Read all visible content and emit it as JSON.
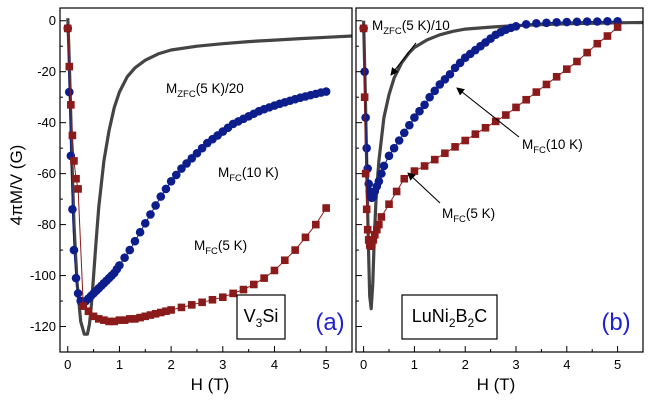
{
  "chart_data": [
    {
      "type": "line",
      "panel_label": "(a)",
      "material_label": {
        "base": "V",
        "sub": "3",
        "rest": "Si"
      },
      "xlabel": "H (T)",
      "ylabel": "4πM/V (G)",
      "xlim": [
        -0.15,
        5.5
      ],
      "ylim": [
        -130,
        5
      ],
      "xticks": [
        0,
        1,
        2,
        3,
        4,
        5
      ],
      "yticks": [
        0,
        -20,
        -40,
        -60,
        -80,
        -100,
        -120
      ],
      "colors": {
        "zfc": "#444444",
        "fc10": "#0d1e8c",
        "fc5": "#8b1a1a",
        "label_blue": "#2222cc"
      },
      "series": [
        {
          "key": "zfc",
          "marker": "none",
          "label": {
            "main": "M",
            "sub": "ZFC",
            "rest": "(5 K)/20"
          },
          "x": [
            0.0,
            0.02,
            0.05,
            0.08,
            0.12,
            0.18,
            0.25,
            0.32,
            0.38,
            0.42,
            0.46,
            0.5,
            0.55,
            0.6,
            0.7,
            0.8,
            0.9,
            1.0,
            1.15,
            1.3,
            1.5,
            1.75,
            2.0,
            2.5,
            3.0,
            3.5,
            4.0,
            4.5,
            5.0,
            5.5
          ],
          "y": [
            1,
            -10,
            -30,
            -55,
            -80,
            -103,
            -118,
            -123,
            -123,
            -119,
            -111,
            -100,
            -86,
            -73,
            -55,
            -43,
            -34,
            -28,
            -22,
            -18.5,
            -15.5,
            -13,
            -11.5,
            -10,
            -9,
            -8.2,
            -7.6,
            -7,
            -6.5,
            -6
          ]
        },
        {
          "key": "fc10",
          "marker": "circle",
          "label": {
            "main": "M",
            "sub": "FC",
            "rest": "(10 K)"
          },
          "x": [
            0.0,
            0.03,
            0.06,
            0.09,
            0.12,
            0.16,
            0.2,
            0.25,
            0.3,
            0.35,
            0.4,
            0.45,
            0.5,
            0.55,
            0.6,
            0.65,
            0.7,
            0.75,
            0.8,
            0.85,
            0.9,
            0.95,
            1.0,
            1.1,
            1.2,
            1.3,
            1.4,
            1.5,
            1.6,
            1.7,
            1.8,
            1.9,
            2.0,
            2.1,
            2.2,
            2.3,
            2.4,
            2.5,
            2.6,
            2.7,
            2.8,
            2.9,
            3.0,
            3.1,
            3.2,
            3.3,
            3.4,
            3.5,
            3.6,
            3.7,
            3.8,
            3.9,
            4.0,
            4.1,
            4.2,
            4.3,
            4.4,
            4.5,
            4.6,
            4.7,
            4.8,
            4.9,
            5.0
          ],
          "y": [
            -3,
            -28,
            -53,
            -74,
            -90,
            -101,
            -107,
            -110,
            -110.5,
            -110,
            -109,
            -108,
            -107,
            -106,
            -105,
            -104,
            -103,
            -102,
            -101,
            -100,
            -99,
            -97.5,
            -96,
            -93,
            -90,
            -86.5,
            -83,
            -79.5,
            -76,
            -72.5,
            -69,
            -66,
            -63,
            -60.5,
            -58,
            -56,
            -54,
            -52,
            -50,
            -48,
            -46.5,
            -45,
            -43.5,
            -42,
            -40.5,
            -39.5,
            -38.5,
            -37.5,
            -36.5,
            -35.5,
            -34.7,
            -34,
            -33.3,
            -32.6,
            -32,
            -31.4,
            -30.8,
            -30.2,
            -29.7,
            -29.2,
            -28.7,
            -28.2,
            -27.8
          ]
        },
        {
          "key": "fc5",
          "marker": "square",
          "label": {
            "main": "M",
            "sub": "FC",
            "rest": "(5 K)"
          },
          "x": [
            0.0,
            0.03,
            0.06,
            0.09,
            0.12,
            0.16,
            0.2,
            0.3,
            0.4,
            0.5,
            0.6,
            0.7,
            0.8,
            0.9,
            1.0,
            1.1,
            1.2,
            1.3,
            1.4,
            1.5,
            1.6,
            1.7,
            1.8,
            1.9,
            2.0,
            2.2,
            2.4,
            2.6,
            2.8,
            3.0,
            3.2,
            3.4,
            3.6,
            3.8,
            4.0,
            4.2,
            4.4,
            4.6,
            4.8,
            5.0
          ],
          "y": [
            -3,
            -18,
            -33,
            -45,
            -55,
            -62,
            -66,
            -112,
            -114,
            -116,
            -117,
            -117.5,
            -118,
            -118,
            -117.5,
            -117.5,
            -117,
            -117,
            -116.5,
            -116,
            -115.5,
            -115,
            -114.5,
            -114,
            -113.5,
            -112.5,
            -111.5,
            -110.5,
            -109.5,
            -108.5,
            -107,
            -105.5,
            -103.5,
            -101,
            -98,
            -94,
            -90,
            -85,
            -80,
            -73.5
          ]
        }
      ]
    },
    {
      "type": "line",
      "panel_label": "(b)",
      "material_label": {
        "base": "LuNi",
        "sub": "2",
        "mid": "B",
        "sub2": "2",
        "rest": "C"
      },
      "xlabel": "H (T)",
      "ylim": [
        -130,
        5
      ],
      "xlim": [
        -0.15,
        5.5
      ],
      "xticks": [
        0,
        1,
        2,
        3,
        4,
        5
      ],
      "series": [
        {
          "key": "zfc",
          "marker": "none",
          "label": {
            "main": "M",
            "sub": "ZFC",
            "rest": "(5 K)/10"
          },
          "x": [
            0.0,
            0.03,
            0.06,
            0.09,
            0.12,
            0.15,
            0.18,
            0.21,
            0.25,
            0.3,
            0.4,
            0.5,
            0.6,
            0.75,
            0.9,
            1.0,
            1.25,
            1.5,
            1.75,
            2.0,
            2.5,
            3.0,
            3.5,
            4.0,
            4.5,
            5.0,
            5.5
          ],
          "y": [
            0,
            -25,
            -55,
            -85,
            -108,
            -113,
            -103,
            -85,
            -68,
            -55,
            -38,
            -29,
            -22.5,
            -16.5,
            -12.5,
            -10.5,
            -7.5,
            -5.5,
            -4.2,
            -3.3,
            -2.5,
            -1.9,
            -1.5,
            -1.2,
            -1,
            -0.8,
            -0.7
          ]
        },
        {
          "key": "fc10",
          "marker": "circle",
          "label": {
            "main": "M",
            "sub": "FC",
            "rest": "(10 K)"
          },
          "x": [
            0.0,
            0.02,
            0.04,
            0.06,
            0.08,
            0.1,
            0.12,
            0.14,
            0.16,
            0.19,
            0.22,
            0.26,
            0.3,
            0.35,
            0.4,
            0.5,
            0.6,
            0.7,
            0.8,
            0.9,
            1.0,
            1.1,
            1.2,
            1.3,
            1.4,
            1.5,
            1.6,
            1.7,
            1.8,
            1.9,
            2.0,
            2.1,
            2.2,
            2.3,
            2.4,
            2.5,
            2.6,
            2.7,
            2.8,
            2.9,
            3.0,
            3.2,
            3.4,
            3.6,
            3.8,
            4.0,
            4.2,
            4.4,
            4.6,
            4.8,
            5.0
          ],
          "y": [
            -3,
            -20,
            -38,
            -50,
            -58,
            -64,
            -67,
            -69,
            -69.5,
            -69,
            -67,
            -65,
            -63,
            -60,
            -57,
            -53,
            -50,
            -47,
            -44,
            -41,
            -38,
            -35.5,
            -33,
            -30,
            -27.5,
            -25,
            -23,
            -21,
            -18.5,
            -16.5,
            -14.5,
            -13,
            -11.5,
            -10,
            -8.5,
            -7,
            -5.5,
            -4.5,
            -3.5,
            -2.8,
            -2.2,
            -1.4,
            -1,
            -0.8,
            -0.6,
            -0.5,
            -0.4,
            -0.3,
            -0.3,
            -0.2,
            -0.2
          ]
        },
        {
          "key": "fc5",
          "marker": "square",
          "label": {
            "main": "M",
            "sub": "FC",
            "rest": "(5 K)"
          },
          "x": [
            0.0,
            0.02,
            0.04,
            0.06,
            0.08,
            0.1,
            0.12,
            0.14,
            0.16,
            0.19,
            0.22,
            0.26,
            0.3,
            0.35,
            0.5,
            0.65,
            0.8,
            1.0,
            1.2,
            1.4,
            1.6,
            1.8,
            2.0,
            2.2,
            2.4,
            2.6,
            2.8,
            3.0,
            3.2,
            3.4,
            3.6,
            3.8,
            4.0,
            4.2,
            4.4,
            4.6,
            4.8,
            5.0
          ],
          "y": [
            -3,
            -30,
            -60,
            -74,
            -82,
            -86,
            -88,
            -88.5,
            -87.5,
            -86,
            -84,
            -82,
            -80,
            -77,
            -72,
            -67,
            -62,
            -59,
            -57,
            -54.5,
            -52,
            -49.5,
            -47,
            -44.5,
            -42,
            -39.5,
            -37,
            -34,
            -31,
            -28,
            -25,
            -22,
            -19,
            -16,
            -12.5,
            -9,
            -6,
            -2.5
          ]
        }
      ]
    }
  ]
}
